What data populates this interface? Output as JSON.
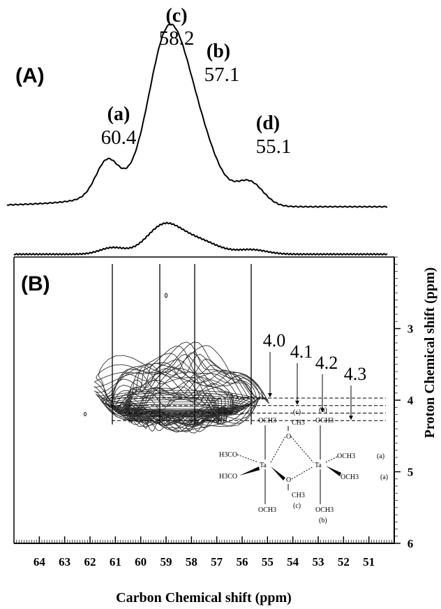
{
  "chart_data": [
    {
      "type": "line",
      "panel_label": "(A)",
      "description_type": "1D 13C NMR spectrum",
      "x_axis": {
        "unit": "ppm",
        "reversed": true
      },
      "peaks": [
        {
          "letter": "(a)",
          "shift": "60.4",
          "x": 60.4,
          "intensity": 0.26
        },
        {
          "letter": "(c)",
          "shift": "58.2",
          "x": 58.2,
          "intensity": 1.0
        },
        {
          "letter": "(b)",
          "shift": "57.1",
          "x": 57.1,
          "intensity": 0.75
        },
        {
          "letter": "(d)",
          "shift": "55.1",
          "x": 55.1,
          "intensity": 0.17
        }
      ]
    },
    {
      "type": "heatmap",
      "panel_label": "(B)",
      "description_type": "2D 1H-13C HETCOR contour plot",
      "xlabel": "Carbon Chemical shift (ppm)",
      "ylabel": "Proton Chemical shift (ppm)",
      "xlim": [
        65,
        50
      ],
      "ylim": [
        2,
        6
      ],
      "x_ticks": [
        "64",
        "63",
        "62",
        "61",
        "60",
        "59",
        "58",
        "57",
        "56",
        "55",
        "54",
        "53",
        "52",
        "51"
      ],
      "y_ticks": [
        "3",
        "4",
        "5",
        "6"
      ],
      "proton_shifts": [
        {
          "label": "4.0",
          "value": 4.0
        },
        {
          "label": "4.1",
          "value": 4.1
        },
        {
          "label": "4.2",
          "value": 4.2
        },
        {
          "label": "4.3",
          "value": 4.3
        }
      ],
      "carbon_guides": [
        60.4,
        58.2,
        57.1,
        55.1
      ]
    }
  ],
  "molecule": {
    "labels": {
      "top_left": "OCH3",
      "top_bridge": "CH3",
      "top_right": "OCH3",
      "left_upper": "H3CO",
      "left_lower": "H3CO",
      "metal_left": "Ta",
      "metal_right": "Ta",
      "bridge_o_upper": "O",
      "bridge_o_lower": "O",
      "right_upper": "OCH3",
      "right_lower": "OCH3",
      "bottom_left": "OCH3",
      "bottom_bridge": "CH3",
      "bottom_right": "OCH3",
      "site_c_top": "(c)",
      "site_b_top": "(b)",
      "site_a_upper": "(a)",
      "site_a_lower": "(a)",
      "site_c_bottom": "(c)",
      "site_b_bottom": "(b)"
    }
  }
}
